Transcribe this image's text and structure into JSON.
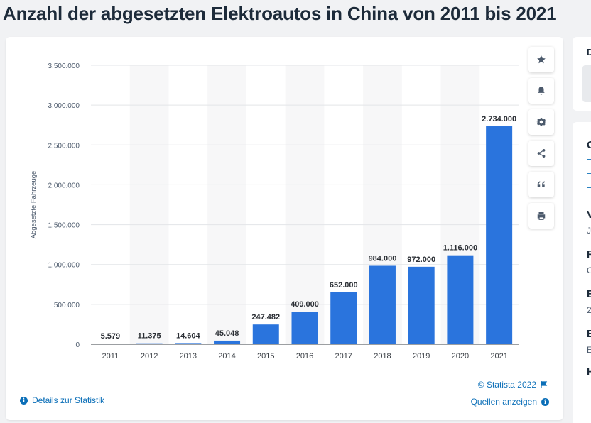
{
  "page": {
    "title": "Anzahl der abgesetzten Elektroautos in China von 2011 bis 2021"
  },
  "chart_data": {
    "type": "bar",
    "categories": [
      "2011",
      "2012",
      "2013",
      "2014",
      "2015",
      "2016",
      "2017",
      "2018",
      "2019",
      "2020",
      "2021"
    ],
    "values": [
      5579,
      11375,
      14604,
      45048,
      247482,
      409000,
      652000,
      984000,
      972000,
      1116000,
      2734000
    ],
    "data_labels": [
      "5.579",
      "11.375",
      "14.604",
      "45.048",
      "247.482",
      "409.000",
      "652.000",
      "984.000",
      "972.000",
      "1.116.000",
      "2.734.000"
    ],
    "ylabel": "Abgesetzte Fahrzeuge",
    "ylim": [
      0,
      3500000
    ],
    "yticks": [
      0,
      500000,
      1000000,
      1500000,
      2000000,
      2500000,
      3000000,
      3500000
    ],
    "ytick_labels": [
      "0",
      "500.000",
      "1.000.000",
      "1.500.000",
      "2.000.000",
      "2.500.000",
      "3.000.000",
      "3.500.000"
    ],
    "grid": true,
    "bar_color": "#2a74dd"
  },
  "toolbar": {
    "icons": [
      "star-icon",
      "bell-icon",
      "gear-icon",
      "share-icon",
      "quote-icon",
      "print-icon"
    ]
  },
  "footer": {
    "details_label": "Details zur Statistik",
    "copyright": "© Statista 2022",
    "sources_label": "Quellen anzeigen"
  },
  "colors": {
    "accent": "#0b6fb8",
    "bar": "#2a74dd",
    "title": "#1d2b3a"
  },
  "sidebar": {
    "top_label": "D",
    "items": [
      {
        "text": "G"
      },
      {
        "text": "–"
      },
      {
        "text": "–"
      },
      {
        "text": "–"
      },
      {
        "text": "V"
      },
      {
        "text": "J"
      },
      {
        "text": "R"
      },
      {
        "text": "C"
      },
      {
        "text": "E"
      },
      {
        "text": "2"
      },
      {
        "text": "E"
      },
      {
        "text": "E"
      },
      {
        "text": "H"
      }
    ]
  }
}
